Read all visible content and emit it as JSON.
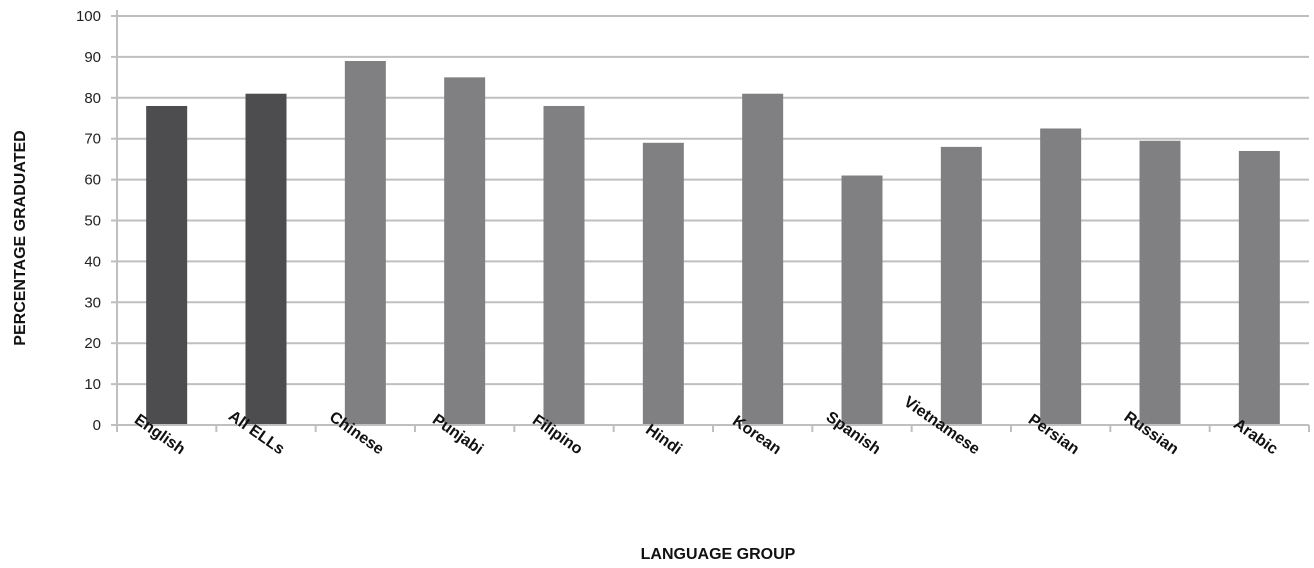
{
  "chart_data": {
    "type": "bar",
    "title": "",
    "xlabel": "LANGUAGE GROUP",
    "ylabel": "PERCENTAGE GRADUATED",
    "ylim": [
      0,
      100
    ],
    "yticks": [
      0,
      10,
      20,
      30,
      40,
      50,
      60,
      70,
      80,
      90,
      100
    ],
    "grid": true,
    "categories": [
      "English",
      "All ELLs",
      "Chinese",
      "Punjabi",
      "Filipino",
      "Hindi",
      "Korean",
      "Spanish",
      "Vietnamese",
      "Persian",
      "Russian",
      "Arabic"
    ],
    "values": [
      78,
      81,
      89,
      85,
      78,
      69,
      81,
      61,
      68,
      72.5,
      69.5,
      67
    ],
    "bar_colors": [
      "#4d4d4f",
      "#4d4d4f",
      "#808083",
      "#808083",
      "#808083",
      "#808083",
      "#808083",
      "#808083",
      "#808083",
      "#808083",
      "#808083",
      "#808083"
    ],
    "gridline_color": "#bfbfbf"
  }
}
